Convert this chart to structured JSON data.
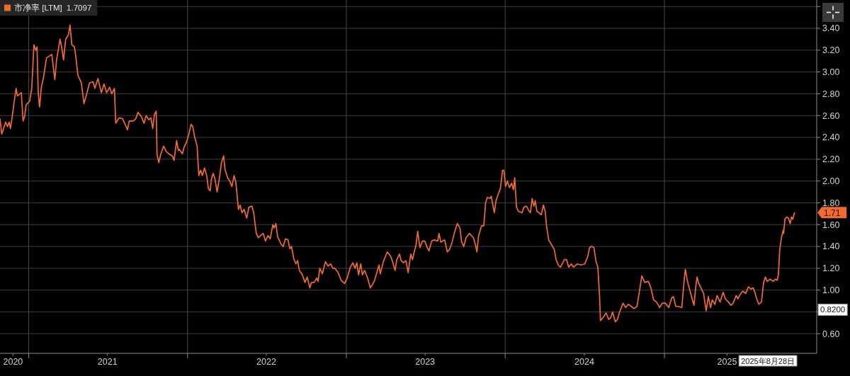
{
  "chart_data": {
    "type": "line",
    "x": [
      "2020-10-27",
      "2020-10-31",
      "2020-11-09",
      "2020-11-13",
      "2020-11-17",
      "2020-11-20",
      "2020-11-24",
      "2020-11-28",
      "2020-12-03",
      "2020-12-06",
      "2020-12-15",
      "2020-12-19",
      "2020-12-23",
      "2020-12-26",
      "2021-01-03",
      "2021-01-08",
      "2021-01-13",
      "2021-01-17",
      "2021-01-20",
      "2021-01-23",
      "2021-01-26",
      "2021-01-30",
      "2021-02-04",
      "2021-02-11",
      "2021-02-23",
      "2021-03-02",
      "2021-03-06",
      "2021-03-14",
      "2021-03-18",
      "2021-03-22",
      "2021-03-27",
      "2021-04-02",
      "2021-04-06",
      "2021-04-10",
      "2021-04-16",
      "2021-04-19",
      "2021-04-24",
      "2021-05-02",
      "2021-05-08",
      "2021-05-13",
      "2021-05-21",
      "2021-05-29",
      "2021-06-02",
      "2021-06-09",
      "2021-06-17",
      "2021-06-23",
      "2021-06-29",
      "2021-07-06",
      "2021-07-11",
      "2021-07-17",
      "2021-07-20",
      "2021-07-28",
      "2021-08-05",
      "2021-08-16",
      "2021-08-20",
      "2021-08-29",
      "2021-09-04",
      "2021-09-09",
      "2021-09-17",
      "2021-09-23",
      "2021-09-28",
      "2021-10-04",
      "2021-10-09",
      "2021-10-13",
      "2021-10-17",
      "2021-10-21",
      "2021-10-23",
      "2021-10-27",
      "2021-10-31",
      "2021-11-07",
      "2021-11-13",
      "2021-11-19",
      "2021-11-27",
      "2021-12-01",
      "2021-12-07",
      "2021-12-11",
      "2021-12-13",
      "2021-12-20",
      "2021-12-24",
      "2021-12-30",
      "2022-01-04",
      "2022-01-09",
      "2022-01-13",
      "2022-01-17",
      "2022-01-23",
      "2022-01-27",
      "2022-01-31",
      "2022-02-04",
      "2022-02-09",
      "2022-02-14",
      "2022-02-18",
      "2022-02-22",
      "2022-02-25",
      "2022-03-01",
      "2022-03-05",
      "2022-03-10",
      "2022-03-15",
      "2022-03-20",
      "2022-03-25",
      "2022-03-28",
      "2022-04-03",
      "2022-04-08",
      "2022-04-13",
      "2022-04-18",
      "2022-04-22",
      "2022-04-28",
      "2022-05-02",
      "2022-05-06",
      "2022-05-11",
      "2022-05-17",
      "2022-05-22",
      "2022-05-29",
      "2022-06-02",
      "2022-06-08",
      "2022-06-13",
      "2022-06-18",
      "2022-06-24",
      "2022-06-29",
      "2022-07-05",
      "2022-07-10",
      "2022-07-16",
      "2022-07-19",
      "2022-07-23",
      "2022-07-27",
      "2022-08-04",
      "2022-08-09",
      "2022-08-14",
      "2022-08-20",
      "2022-08-24",
      "2022-08-28",
      "2022-09-02",
      "2022-09-07",
      "2022-09-11",
      "2022-09-15",
      "2022-09-22",
      "2022-09-28",
      "2022-10-03",
      "2022-10-09",
      "2022-10-13",
      "2022-10-19",
      "2022-10-25",
      "2022-10-28",
      "2022-11-01",
      "2022-11-07",
      "2022-11-10",
      "2022-11-14",
      "2022-11-20",
      "2022-11-26",
      "2022-12-01",
      "2022-12-06",
      "2022-12-13",
      "2022-12-20",
      "2022-12-28",
      "2023-01-03",
      "2023-01-10",
      "2023-01-16",
      "2023-01-21",
      "2023-01-25",
      "2023-01-29",
      "2023-02-03",
      "2023-02-07",
      "2023-02-12",
      "2023-02-19",
      "2023-02-25",
      "2023-03-02",
      "2023-03-07",
      "2023-03-12",
      "2023-03-17",
      "2023-03-20",
      "2023-03-27",
      "2023-04-05",
      "2023-04-13",
      "2023-04-18",
      "2023-04-23",
      "2023-04-27",
      "2023-05-03",
      "2023-05-07",
      "2023-05-12",
      "2023-05-18",
      "2023-05-23",
      "2023-05-29",
      "2023-06-02",
      "2023-06-06",
      "2023-06-10",
      "2023-06-14",
      "2023-06-19",
      "2023-06-25",
      "2023-06-30",
      "2023-07-06",
      "2023-07-10",
      "2023-07-16",
      "2023-07-22",
      "2023-07-30",
      "2023-08-02",
      "2023-08-06",
      "2023-08-15",
      "2023-08-21",
      "2023-08-26",
      "2023-09-01",
      "2023-09-06",
      "2023-09-13",
      "2023-09-19",
      "2023-09-23",
      "2023-09-28",
      "2023-10-03",
      "2023-10-11",
      "2023-10-20",
      "2023-10-25",
      "2023-10-28",
      "2023-11-01",
      "2023-11-08",
      "2023-11-13",
      "2023-11-17",
      "2023-11-21",
      "2023-11-27",
      "2023-11-30",
      "2023-12-07",
      "2023-12-11",
      "2023-12-17",
      "2023-12-21",
      "2023-12-26",
      "2023-12-29",
      "2024-01-02",
      "2024-01-06",
      "2024-01-11",
      "2024-01-16",
      "2024-01-20",
      "2024-01-23",
      "2024-01-27",
      "2024-02-01",
      "2024-02-09",
      "2024-02-13",
      "2024-02-19",
      "2024-02-24",
      "2024-02-28",
      "2024-03-03",
      "2024-03-07",
      "2024-03-10",
      "2024-03-14",
      "2024-03-19",
      "2024-03-24",
      "2024-03-29",
      "2024-04-02",
      "2024-04-05",
      "2024-04-10",
      "2024-04-16",
      "2024-04-23",
      "2024-04-27",
      "2024-05-02",
      "2024-05-07",
      "2024-05-16",
      "2024-05-21",
      "2024-05-26",
      "2024-06-01",
      "2024-06-06",
      "2024-06-15",
      "2024-06-23",
      "2024-07-02",
      "2024-07-09",
      "2024-07-13",
      "2024-07-18",
      "2024-07-23",
      "2024-07-28",
      "2024-08-01",
      "2024-08-05",
      "2024-08-07",
      "2024-08-13",
      "2024-08-20",
      "2024-08-26",
      "2024-08-31",
      "2024-09-04",
      "2024-09-10",
      "2024-09-15",
      "2024-09-20",
      "2024-09-28",
      "2024-10-04",
      "2024-10-10",
      "2024-10-17",
      "2024-10-23",
      "2024-10-30",
      "2024-11-05",
      "2024-11-10",
      "2024-11-17",
      "2024-11-25",
      "2024-12-01",
      "2024-12-07",
      "2024-12-14",
      "2024-12-21",
      "2024-12-27",
      "2025-01-03",
      "2025-01-11",
      "2025-01-18",
      "2025-01-22",
      "2025-01-27",
      "2025-02-03",
      "2025-02-10",
      "2025-02-14",
      "2025-02-18",
      "2025-02-23",
      "2025-02-27",
      "2025-03-05",
      "2025-03-10",
      "2025-03-14",
      "2025-03-17",
      "2025-03-21",
      "2025-03-26",
      "2025-04-01",
      "2025-04-07",
      "2025-04-12",
      "2025-04-17",
      "2025-04-21",
      "2025-04-27",
      "2025-05-02",
      "2025-05-09",
      "2025-05-16",
      "2025-05-21",
      "2025-05-28",
      "2025-06-03",
      "2025-06-08",
      "2025-06-15",
      "2025-06-19",
      "2025-06-24",
      "2025-06-30",
      "2025-07-07",
      "2025-07-13",
      "2025-07-19",
      "2025-07-24",
      "2025-07-28",
      "2025-08-01",
      "2025-08-06",
      "2025-08-12",
      "2025-08-17",
      "2025-08-21",
      "2025-08-25",
      "2025-09-01",
      "2025-09-08",
      "2025-09-13",
      "2025-09-17",
      "2025-09-20",
      "2025-09-23",
      "2025-09-27",
      "2025-10-01",
      "2025-10-02",
      "2025-10-05",
      "2025-10-09",
      "2025-10-13",
      "2025-10-17",
      "2025-10-20",
      "2025-10-23",
      "2025-10-27"
    ],
    "series": [
      {
        "name": "市净率 [LTM]  1.7097",
        "color": "#f26b2c",
        "values": [
          2.57,
          2.43,
          2.54,
          2.5,
          2.54,
          2.48,
          2.59,
          2.71,
          2.85,
          2.78,
          2.81,
          2.55,
          2.6,
          2.7,
          2.73,
          2.85,
          3.25,
          3.2,
          3.23,
          2.8,
          2.68,
          2.86,
          2.95,
          3.13,
          3.16,
          2.93,
          3.11,
          3.3,
          3.22,
          3.11,
          3.3,
          3.34,
          3.43,
          3.25,
          3.23,
          3.15,
          2.97,
          2.9,
          2.71,
          2.78,
          2.9,
          2.91,
          2.85,
          2.94,
          2.81,
          2.89,
          2.81,
          2.86,
          2.8,
          2.85,
          2.53,
          2.58,
          2.57,
          2.47,
          2.55,
          2.55,
          2.57,
          2.63,
          2.59,
          2.53,
          2.6,
          2.56,
          2.58,
          2.48,
          2.61,
          2.64,
          2.24,
          2.17,
          2.24,
          2.32,
          2.27,
          2.25,
          2.23,
          2.19,
          2.37,
          2.28,
          2.29,
          2.25,
          2.31,
          2.36,
          2.43,
          2.52,
          2.5,
          2.41,
          2.32,
          2.05,
          2.1,
          2.05,
          2.12,
          2.05,
          1.93,
          1.91,
          2.02,
          2.07,
          2.02,
          1.9,
          2.02,
          2.17,
          2.23,
          2.11,
          2.03,
          2.0,
          1.95,
          2.05,
          1.99,
          1.74,
          1.78,
          1.71,
          1.74,
          1.66,
          1.76,
          1.77,
          1.71,
          1.52,
          1.48,
          1.5,
          1.52,
          1.45,
          1.5,
          1.47,
          1.6,
          1.57,
          1.61,
          1.49,
          1.42,
          1.4,
          1.47,
          1.46,
          1.38,
          1.4,
          1.29,
          1.24,
          1.27,
          1.18,
          1.14,
          1.07,
          1.12,
          1.02,
          1.07,
          1.07,
          1.11,
          1.08,
          1.2,
          1.15,
          1.2,
          1.26,
          1.22,
          1.24,
          1.2,
          1.2,
          1.16,
          1.09,
          1.06,
          1.11,
          1.21,
          1.25,
          1.2,
          1.25,
          1.14,
          1.24,
          1.14,
          1.18,
          1.11,
          1.02,
          1.05,
          1.09,
          1.16,
          1.23,
          1.15,
          1.26,
          1.35,
          1.31,
          1.25,
          1.18,
          1.28,
          1.33,
          1.27,
          1.25,
          1.27,
          1.16,
          1.33,
          1.28,
          1.35,
          1.41,
          1.54,
          1.39,
          1.45,
          1.45,
          1.39,
          1.36,
          1.45,
          1.46,
          1.45,
          1.52,
          1.44,
          1.46,
          1.35,
          1.37,
          1.44,
          1.52,
          1.61,
          1.57,
          1.44,
          1.4,
          1.48,
          1.52,
          1.48,
          1.41,
          1.35,
          1.5,
          1.59,
          1.59,
          1.8,
          1.85,
          1.84,
          1.86,
          1.71,
          1.82,
          1.89,
          1.93,
          2.1,
          2.1,
          1.95,
          2.0,
          1.94,
          1.98,
          1.92,
          2.03,
          1.76,
          1.72,
          1.71,
          1.76,
          1.77,
          1.73,
          1.71,
          1.84,
          1.77,
          1.82,
          1.72,
          1.71,
          1.69,
          1.78,
          1.72,
          1.59,
          1.46,
          1.42,
          1.37,
          1.28,
          1.23,
          1.21,
          1.28,
          1.28,
          1.21,
          1.24,
          1.21,
          1.24,
          1.23,
          1.24,
          1.31,
          1.39,
          1.4,
          1.39,
          1.26,
          1.21,
          0.94,
          0.72,
          0.75,
          0.79,
          0.73,
          0.75,
          0.8,
          0.71,
          0.73,
          0.8,
          0.88,
          0.84,
          0.87,
          0.85,
          0.83,
          0.85,
          1.0,
          1.13,
          1.07,
          1.08,
          1.02,
          0.91,
          0.89,
          0.84,
          0.88,
          0.88,
          0.84,
          0.93,
          0.94,
          0.85,
          0.85,
          0.84,
          1.03,
          1.19,
          1.08,
          1.02,
          0.93,
          0.86,
          1.03,
          1.12,
          1.06,
          1.02,
          0.97,
          0.81,
          0.94,
          0.84,
          0.91,
          0.87,
          0.95,
          0.89,
          0.98,
          0.92,
          0.89,
          0.86,
          0.88,
          0.95,
          0.92,
          0.96,
          0.99,
          0.97,
          1.03,
          1.01,
          1.02,
          0.98,
          0.92,
          0.87,
          0.89,
          1.07,
          1.12,
          1.08,
          1.1,
          1.08,
          1.1,
          1.09,
          1.14,
          1.37,
          1.48,
          1.55,
          1.52,
          1.65,
          1.67,
          1.66,
          1.61,
          1.67,
          1.65,
          1.71
        ]
      }
    ],
    "xlim": [
      "2020-10-27",
      "2025-12-17"
    ],
    "ylim": [
      0.42,
      3.66
    ],
    "xticks": [
      {
        "value": "2020-11-26",
        "label": "2020"
      },
      {
        "value": "2021-01-01",
        "label": null
      },
      {
        "value": "2021-07-01",
        "label": "2021"
      },
      {
        "value": "2022-01-01",
        "label": null
      },
      {
        "value": "2022-07-01",
        "label": "2022"
      },
      {
        "value": "2023-01-01",
        "label": null
      },
      {
        "value": "2023-07-01",
        "label": "2023"
      },
      {
        "value": "2024-01-01",
        "label": null
      },
      {
        "value": "2024-07-01",
        "label": "2024"
      },
      {
        "value": "2025-01-01",
        "label": null
      },
      {
        "value": "2025-05-25",
        "label": "2025"
      }
    ],
    "yticks": [
      {
        "value": 0.6,
        "label": "0.60"
      },
      {
        "value": 0.8,
        "label": null
      },
      {
        "value": 1.0,
        "label": "1.00"
      },
      {
        "value": 1.2,
        "label": "1.20"
      },
      {
        "value": 1.4,
        "label": "1.40"
      },
      {
        "value": 1.6,
        "label": "1.60"
      },
      {
        "value": 1.8,
        "label": "1.80"
      },
      {
        "value": 2.0,
        "label": "2.00"
      },
      {
        "value": 2.2,
        "label": "2.20"
      },
      {
        "value": 2.4,
        "label": "2.40"
      },
      {
        "value": 2.6,
        "label": "2.60"
      },
      {
        "value": 2.8,
        "label": "2.80"
      },
      {
        "value": 3.0,
        "label": "3.00"
      },
      {
        "value": 3.2,
        "label": "3.20"
      },
      {
        "value": 3.4,
        "label": "3.40"
      },
      {
        "value": 3.6,
        "label": null
      }
    ],
    "grid": true,
    "legend": "top left",
    "annotations": [
      {
        "text": "1.71",
        "y": 1.71
      },
      {
        "text": "0.8200",
        "y": 0.82
      },
      "2025年8月28日"
    ]
  }
}
